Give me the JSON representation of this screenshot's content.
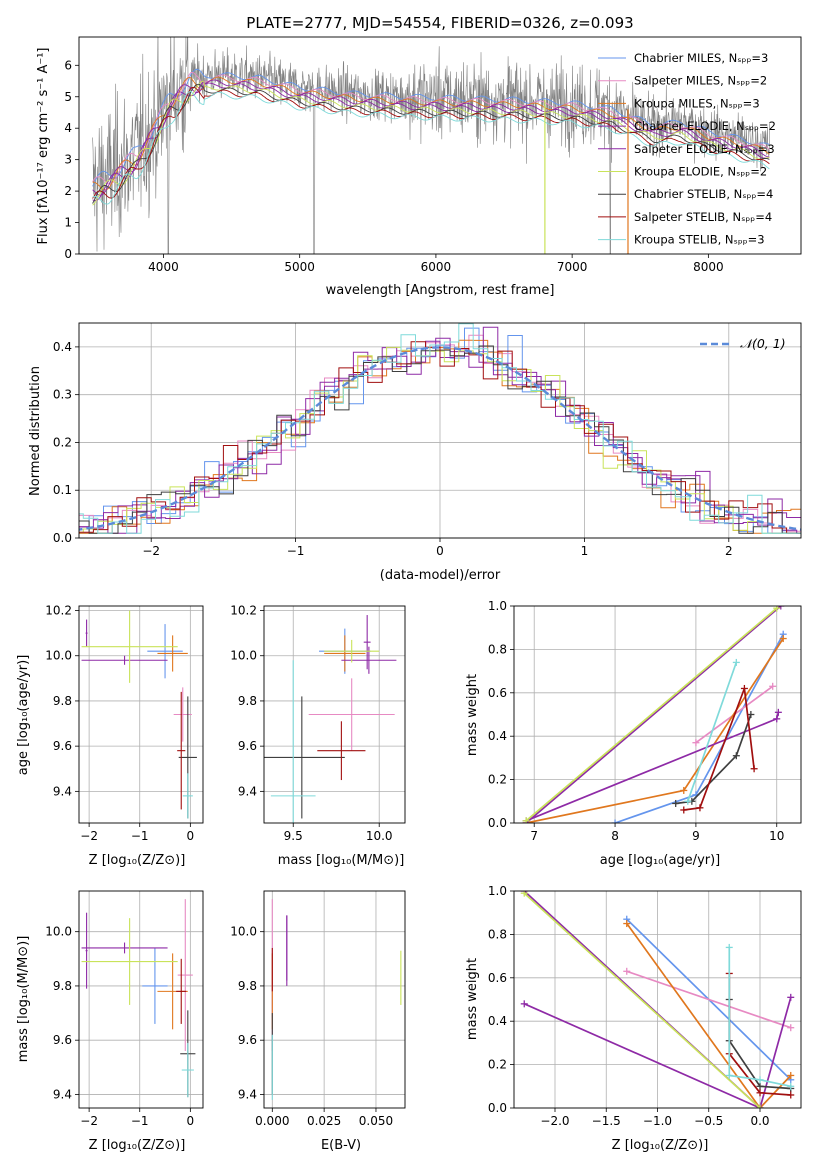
{
  "colors": {
    "chabrier_miles": "#6495ed",
    "salpeter_miles": "#e78ac3",
    "kroupa_miles": "#e0771e",
    "chabrier_elodie": "#8e2aa6",
    "salpeter_elodie": "#8e2aa6",
    "kroupa_elodie": "#c9e35a",
    "chabrier_stelib": "#3f3f3f",
    "salpeter_stelib": "#a10f0f",
    "kroupa_stelib": "#7fdada",
    "gauss": "#5b8bd9",
    "data_gray": "#808080",
    "grid": "#b0b0b0"
  },
  "chart_data": [
    {
      "id": "spectrum",
      "type": "line",
      "title": "PLATE=2777, MJD=54554, FIBERID=0326, z=0.093",
      "xlabel": "wavelength [Angstrom, rest frame]",
      "ylabel": "Flux [fλ10⁻¹⁷ erg cm⁻² s⁻¹ A⁻¹]",
      "xlim": [
        3380,
        8680
      ],
      "ylim": [
        0,
        6.9
      ],
      "xticks": [
        "4000",
        "5000",
        "6000",
        "7000",
        "8000"
      ],
      "yticks": [
        "0",
        "1",
        "2",
        "3",
        "4",
        "5",
        "6"
      ],
      "legend_position": "top-right",
      "legend": [
        "Chabrier MILES, Nₛₚₚ=3",
        "Salpeter MILES, Nₛₚₚ=2",
        "Kroupa MILES, Nₛₚₚ=3",
        "Chabrier ELODIE, Nₛₚₚ=2",
        "Salpeter ELODIE, Nₛₚₚ=3",
        "Kroupa ELODIE, Nₛₚₚ=2",
        "Chabrier STELIB, Nₛₚₚ=4",
        "Salpeter STELIB, Nₛₚₚ=4",
        "Kroupa STELIB, Nₛₚₚ=3"
      ],
      "continuum": [
        [
          3480,
          2.2
        ],
        [
          3600,
          2.5
        ],
        [
          3800,
          3.2
        ],
        [
          3950,
          4.2
        ],
        [
          4050,
          5.0
        ],
        [
          4200,
          5.6
        ],
        [
          4400,
          5.7
        ],
        [
          4700,
          5.6
        ],
        [
          5000,
          5.3
        ],
        [
          5400,
          5.1
        ],
        [
          5800,
          5.0
        ],
        [
          6200,
          4.95
        ],
        [
          6600,
          4.9
        ],
        [
          7000,
          4.8
        ],
        [
          7300,
          4.6
        ],
        [
          7600,
          4.1
        ],
        [
          7800,
          4.2
        ],
        [
          8000,
          3.9
        ],
        [
          8300,
          3.6
        ],
        [
          8450,
          3.4
        ]
      ]
    },
    {
      "id": "residuals",
      "type": "line",
      "xlabel": "(data-model)/error",
      "ylabel": "Normed distribution",
      "xlim": [
        -2.5,
        2.5
      ],
      "ylim": [
        0,
        0.45
      ],
      "xticks": [
        "−2",
        "−1",
        "0",
        "1",
        "2"
      ],
      "yticks": [
        "0.0",
        "0.1",
        "0.2",
        "0.3",
        "0.4"
      ],
      "legend": [
        "𝒩(0, 1)"
      ],
      "series": [
        {
          "name": "𝒩(0, 1)",
          "mu": 0,
          "sigma": 1
        }
      ]
    },
    {
      "id": "age_vs_Z",
      "type": "scatter",
      "xlabel": "Z [log₁₀(Z/Z⊙)]",
      "ylabel": "age  [log₁₀(age/yr)]",
      "xlim": [
        -2.2,
        0.25
      ],
      "ylim": [
        9.26,
        10.22
      ],
      "xticks": [
        "−2",
        "−1",
        "0"
      ],
      "yticks": [
        "9.4",
        "9.6",
        "9.8",
        "10.0",
        "10.2"
      ],
      "points": [
        {
          "series": "chabrier_miles",
          "x": -0.5,
          "y": 10.02,
          "xerr": 0.35,
          "yerr": 0.12
        },
        {
          "series": "salpeter_miles",
          "x": -0.15,
          "y": 9.74,
          "xerr": 0.18,
          "yerr": 0.12
        },
        {
          "series": "kroupa_miles",
          "x": -0.35,
          "y": 10.01,
          "xerr": 0.3,
          "yerr": 0.08
        },
        {
          "series": "chabrier_elodie",
          "x": -2.05,
          "y": 10.1,
          "xerr": 0.02,
          "yerr": 0.06
        },
        {
          "series": "salpeter_elodie",
          "x": -1.3,
          "y": 9.98,
          "xerr": 0.85,
          "yerr": 0.02
        },
        {
          "series": "kroupa_elodie",
          "x": -1.2,
          "y": 10.04,
          "xerr": 0.95,
          "yerr": 0.16
        },
        {
          "series": "chabrier_stelib",
          "x": -0.05,
          "y": 9.55,
          "xerr": 0.18,
          "yerr": 0.27
        },
        {
          "series": "salpeter_stelib",
          "x": -0.18,
          "y": 9.58,
          "xerr": 0.08,
          "yerr": 0.26
        },
        {
          "series": "kroupa_stelib",
          "x": -0.05,
          "y": 9.38,
          "xerr": 0.1,
          "yerr": 0.1
        }
      ]
    },
    {
      "id": "age_vs_mass",
      "type": "scatter",
      "xlabel": "mass [log₁₀(M/M⊙)]",
      "ylabel": "",
      "xlim": [
        9.33,
        10.15
      ],
      "ylim": [
        9.26,
        10.22
      ],
      "xticks": [
        "9.5",
        "10.0"
      ],
      "yticks": [
        "9.4",
        "9.6",
        "9.8",
        "10.0",
        "10.2"
      ],
      "points": [
        {
          "series": "chabrier_miles",
          "x": 9.8,
          "y": 10.02,
          "xerr": 0.15,
          "yerr": 0.1
        },
        {
          "series": "salpeter_miles",
          "x": 9.84,
          "y": 9.74,
          "xerr": 0.25,
          "yerr": 0.16
        },
        {
          "series": "kroupa_miles",
          "x": 9.8,
          "y": 10.01,
          "xerr": 0.12,
          "yerr": 0.08
        },
        {
          "series": "chabrier_elodie",
          "x": 9.93,
          "y": 10.06,
          "xerr": 0.02,
          "yerr": 0.12
        },
        {
          "series": "salpeter_elodie",
          "x": 9.94,
          "y": 9.98,
          "xerr": 0.16,
          "yerr": 0.06
        },
        {
          "series": "kroupa_elodie",
          "x": 9.84,
          "y": 10.02,
          "xerr": 0.16,
          "yerr": 0.05
        },
        {
          "series": "chabrier_stelib",
          "x": 9.55,
          "y": 9.55,
          "xerr": 0.25,
          "yerr": 0.27
        },
        {
          "series": "salpeter_stelib",
          "x": 9.78,
          "y": 9.58,
          "xerr": 0.14,
          "yerr": 0.13
        },
        {
          "series": "kroupa_stelib",
          "x": 9.5,
          "y": 9.38,
          "xerr": 0.13,
          "yerr": 0.6
        }
      ]
    },
    {
      "id": "weight_vs_age",
      "type": "line",
      "xlabel": "age  [log₁₀(age/yr)]",
      "ylabel": "mass weight",
      "xlim": [
        6.75,
        10.3
      ],
      "ylim": [
        0,
        1
      ],
      "xticks": [
        "7",
        "8",
        "9",
        "10"
      ],
      "yticks": [
        "0.0",
        "0.2",
        "0.4",
        "0.6",
        "0.8",
        "1.0"
      ],
      "series": [
        {
          "name": "chabrier_miles",
          "x": [
            8.0,
            9.0,
            10.08
          ],
          "y": [
            0.0,
            0.13,
            0.87
          ]
        },
        {
          "name": "salpeter_miles",
          "x": [
            9.0,
            9.95
          ],
          "y": [
            0.37,
            0.63
          ]
        },
        {
          "name": "kroupa_miles",
          "x": [
            6.9,
            8.85,
            10.08
          ],
          "y": [
            0.0,
            0.15,
            0.85
          ]
        },
        {
          "name": "chabrier_elodie",
          "x": [
            6.9,
            10.05
          ],
          "y": [
            0.0,
            1.0
          ]
        },
        {
          "name": "salpeter_elodie",
          "x": [
            6.9,
            10.0,
            10.02
          ],
          "y": [
            0.01,
            0.48,
            0.51
          ]
        },
        {
          "name": "kroupa_elodie",
          "x": [
            6.9,
            10.0
          ],
          "y": [
            0.01,
            0.99
          ]
        },
        {
          "name": "chabrier_stelib",
          "x": [
            8.75,
            8.95,
            9.5,
            9.68
          ],
          "y": [
            0.09,
            0.1,
            0.31,
            0.5
          ]
        },
        {
          "name": "salpeter_stelib",
          "x": [
            8.85,
            9.05,
            9.6,
            9.72
          ],
          "y": [
            0.06,
            0.07,
            0.62,
            0.25
          ]
        },
        {
          "name": "kroupa_stelib",
          "x": [
            8.9,
            9.5
          ],
          "y": [
            0.1,
            0.74
          ]
        }
      ]
    },
    {
      "id": "mass_vs_Z",
      "type": "scatter",
      "xlabel": "Z [log₁₀(Z/Z⊙)]",
      "ylabel": "mass [log₁₀(M/M⊙)]",
      "xlim": [
        -2.2,
        0.25
      ],
      "ylim": [
        9.35,
        10.15
      ],
      "xticks": [
        "−2",
        "−1",
        "0"
      ],
      "yticks": [
        "9.4",
        "9.6",
        "9.8",
        "10.0"
      ],
      "points": [
        {
          "series": "chabrier_miles",
          "x": -0.7,
          "y": 9.8,
          "xerr": 0.25,
          "yerr": 0.14
        },
        {
          "series": "salpeter_miles",
          "x": -0.1,
          "y": 9.84,
          "xerr": 0.15,
          "yerr": 0.28
        },
        {
          "series": "kroupa_miles",
          "x": -0.35,
          "y": 9.78,
          "xerr": 0.3,
          "yerr": 0.14
        },
        {
          "series": "chabrier_elodie",
          "x": -2.05,
          "y": 9.93,
          "xerr": 0.02,
          "yerr": 0.14
        },
        {
          "series": "salpeter_elodie",
          "x": -1.3,
          "y": 9.94,
          "xerr": 0.85,
          "yerr": 0.02
        },
        {
          "series": "kroupa_elodie",
          "x": -1.2,
          "y": 9.89,
          "xerr": 0.95,
          "yerr": 0.16
        },
        {
          "series": "chabrier_stelib",
          "x": -0.05,
          "y": 9.55,
          "xerr": 0.15,
          "yerr": 0.16
        },
        {
          "series": "salpeter_stelib",
          "x": -0.18,
          "y": 9.78,
          "xerr": 0.1,
          "yerr": 0.12
        },
        {
          "series": "kroupa_stelib",
          "x": -0.05,
          "y": 9.49,
          "xerr": 0.12,
          "yerr": 0.1
        }
      ]
    },
    {
      "id": "mass_vs_ebv",
      "type": "scatter",
      "xlabel": "E(B-V)",
      "ylabel": "",
      "xlim": [
        -0.004,
        0.064
      ],
      "ylim": [
        9.35,
        10.15
      ],
      "xticks": [
        "0.000",
        "0.025",
        "0.050"
      ],
      "yticks": [
        "9.4",
        "9.6",
        "9.8",
        "10.0"
      ],
      "points": [
        {
          "series": "chabrier_miles",
          "x": 0.0,
          "y": 9.8,
          "xerr": 0,
          "yerr": 0.12
        },
        {
          "series": "salpeter_miles",
          "x": 0.0,
          "y": 9.84,
          "xerr": 0,
          "yerr": 0.28
        },
        {
          "series": "kroupa_miles",
          "x": 0.0,
          "y": 9.78,
          "xerr": 0,
          "yerr": 0.14
        },
        {
          "series": "chabrier_elodie",
          "x": 0.007,
          "y": 9.93,
          "xerr": 0,
          "yerr": 0.13
        },
        {
          "series": "salpeter_elodie",
          "x": 0.007,
          "y": 9.94,
          "xerr": 0,
          "yerr": 0.12
        },
        {
          "series": "kroupa_elodie",
          "x": 0.062,
          "y": 9.83,
          "xerr": 0,
          "yerr": 0.1
        },
        {
          "series": "chabrier_stelib",
          "x": 0.0,
          "y": 9.55,
          "xerr": 0,
          "yerr": 0.15
        },
        {
          "series": "salpeter_stelib",
          "x": 0.0,
          "y": 9.86,
          "xerr": 0,
          "yerr": 0.08
        },
        {
          "series": "kroupa_stelib",
          "x": 0.0,
          "y": 9.5,
          "xerr": 0,
          "yerr": 0.12
        }
      ]
    },
    {
      "id": "weight_vs_Z",
      "type": "line",
      "xlabel": "Z [log₁₀(Z/Z⊙)]",
      "ylabel": "mass weight",
      "xlim": [
        -2.4,
        0.4
      ],
      "ylim": [
        0,
        1
      ],
      "xticks": [
        "−2.0",
        "−1.5",
        "−1.0",
        "−0.5",
        "0.0"
      ],
      "yticks": [
        "0.0",
        "0.2",
        "0.4",
        "0.6",
        "0.8",
        "1.0"
      ],
      "series": [
        {
          "name": "chabrier_miles",
          "x": [
            -1.3,
            0.3
          ],
          "y": [
            0.87,
            0.13
          ]
        },
        {
          "name": "salpeter_miles",
          "x": [
            -1.3,
            0.3
          ],
          "y": [
            0.63,
            0.37
          ]
        },
        {
          "name": "kroupa_miles",
          "x": [
            -1.3,
            0.0,
            0.3
          ],
          "y": [
            0.85,
            0.0,
            0.15
          ]
        },
        {
          "name": "chabrier_elodie",
          "x": [
            -2.3,
            0.0
          ],
          "y": [
            1.0,
            0.0
          ]
        },
        {
          "name": "salpeter_elodie",
          "x": [
            -2.3,
            0.0,
            0.3
          ],
          "y": [
            0.48,
            0.0,
            0.51
          ]
        },
        {
          "name": "kroupa_elodie",
          "x": [
            -2.3,
            0.0
          ],
          "y": [
            0.99,
            0.0
          ]
        },
        {
          "name": "chabrier_stelib",
          "x": [
            -0.3,
            -0.3,
            0.0,
            0.3
          ],
          "y": [
            0.5,
            0.31,
            0.1,
            0.09
          ]
        },
        {
          "name": "salpeter_stelib",
          "x": [
            -0.3,
            -0.3,
            0.0,
            0.3
          ],
          "y": [
            0.62,
            0.25,
            0.07,
            0.06
          ]
        },
        {
          "name": "kroupa_stelib",
          "x": [
            -0.3,
            -0.3,
            0.0,
            0.3
          ],
          "y": [
            0.74,
            0.15,
            0.13,
            0.1
          ]
        }
      ]
    }
  ]
}
